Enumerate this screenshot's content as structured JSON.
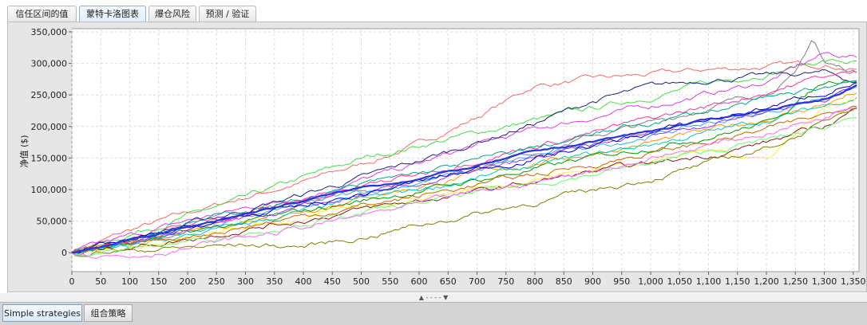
{
  "tabs": [
    {
      "label": "信任区间的值"
    },
    {
      "label": "蒙特卡洛图表"
    },
    {
      "label": "爆仓风险"
    },
    {
      "label": "预测 / 验证"
    }
  ],
  "active_tab": 1,
  "splitter": {
    "glyphs": "▲ - - - - ▼"
  },
  "bottom_tabs": [
    {
      "label": "Simple strategies"
    },
    {
      "label": "组合策略"
    }
  ],
  "active_bottom_tab": 0,
  "chart_data": {
    "type": "line",
    "ylabel": "净值 ($)",
    "xlabel": "",
    "xlim": [
      0,
      1360
    ],
    "ylim": [
      -30000,
      355000
    ],
    "xticks": [
      0,
      50,
      100,
      150,
      200,
      250,
      300,
      350,
      400,
      450,
      500,
      550,
      600,
      650,
      700,
      750,
      800,
      850,
      900,
      950,
      1000,
      1050,
      1100,
      1150,
      1200,
      1250,
      1300,
      1350
    ],
    "xtick_labels": [
      "0",
      "50",
      "100",
      "150",
      "200",
      "250",
      "300",
      "350",
      "400",
      "450",
      "500",
      "550",
      "600",
      "650",
      "700",
      "750",
      "800",
      "850",
      "900",
      "950",
      "1,000",
      "1,050",
      "1,100",
      "1,150",
      "1,200",
      "1,250",
      "1,300",
      "1,350"
    ],
    "yticks": [
      0,
      50000,
      100000,
      150000,
      200000,
      250000,
      300000,
      350000
    ],
    "ytick_labels": [
      "0",
      "50,000",
      "100,000",
      "150,000",
      "200,000",
      "250,000",
      "300,000",
      "350,000"
    ],
    "grid": true,
    "series": [
      {
        "color": "#2a35d8",
        "emphasis": true,
        "x": [
          0,
          100,
          200,
          300,
          400,
          500,
          600,
          700,
          800,
          900,
          1000,
          1100,
          1200,
          1300,
          1360
        ],
        "y": [
          0,
          20000,
          40000,
          62000,
          82000,
          103000,
          118000,
          137000,
          160000,
          176000,
          193000,
          210000,
          227000,
          243000,
          267000
        ]
      },
      {
        "color": "#ff6666",
        "x": [
          0,
          100,
          200,
          300,
          400,
          500,
          600,
          700,
          800,
          900,
          1000,
          1100,
          1200,
          1300,
          1360
        ],
        "y": [
          0,
          35000,
          62000,
          88000,
          112000,
          140000,
          172000,
          215000,
          265000,
          275000,
          282000,
          290000,
          295000,
          300000,
          290000
        ]
      },
      {
        "color": "#44dd44",
        "x": [
          0,
          100,
          200,
          300,
          400,
          500,
          600,
          700,
          800,
          900,
          1000,
          1100,
          1200,
          1300,
          1360
        ],
        "y": [
          0,
          30000,
          58000,
          85000,
          118000,
          148000,
          170000,
          190000,
          210000,
          228000,
          248000,
          268000,
          285000,
          305000,
          300000
        ]
      },
      {
        "color": "#e040e0",
        "x": [
          0,
          100,
          200,
          300,
          400,
          500,
          600,
          700,
          800,
          900,
          1000,
          1100,
          1200,
          1300,
          1360
        ],
        "y": [
          0,
          25000,
          50000,
          70000,
          90000,
          115000,
          140000,
          170000,
          195000,
          215000,
          232000,
          252000,
          270000,
          315000,
          310000
        ]
      },
      {
        "color": "#808080",
        "x": [
          0,
          100,
          200,
          300,
          400,
          500,
          600,
          700,
          800,
          900,
          1000,
          1100,
          1200,
          1250,
          1280,
          1300,
          1360
        ],
        "y": [
          0,
          18000,
          38000,
          58000,
          78000,
          98000,
          118000,
          140000,
          160000,
          185000,
          205000,
          230000,
          255000,
          280000,
          340000,
          300000,
          285000
        ]
      },
      {
        "color": "#1a237e",
        "x": [
          0,
          100,
          200,
          300,
          400,
          500,
          600,
          700,
          800,
          900,
          1000,
          1100,
          1200,
          1300,
          1360
        ],
        "y": [
          0,
          22000,
          45000,
          68000,
          92000,
          118000,
          145000,
          175000,
          205000,
          240000,
          262000,
          275000,
          280000,
          285000,
          270000
        ]
      },
      {
        "color": "#33aaff",
        "x": [
          0,
          100,
          200,
          300,
          400,
          500,
          600,
          700,
          800,
          900,
          1000,
          1100,
          1200,
          1300,
          1360
        ],
        "y": [
          0,
          15000,
          33000,
          55000,
          75000,
          95000,
          112000,
          130000,
          152000,
          168000,
          186000,
          205000,
          222000,
          248000,
          262000
        ]
      },
      {
        "color": "#ff9900",
        "x": [
          0,
          100,
          200,
          300,
          400,
          500,
          600,
          700,
          800,
          900,
          1000,
          1100,
          1200,
          1300,
          1360
        ],
        "y": [
          0,
          12000,
          30000,
          50000,
          68000,
          88000,
          105000,
          125000,
          142000,
          158000,
          175000,
          192000,
          212000,
          235000,
          255000
        ]
      },
      {
        "color": "#00c8c8",
        "x": [
          0,
          100,
          200,
          300,
          400,
          500,
          600,
          700,
          800,
          900,
          1000,
          1100,
          1200,
          1300,
          1360
        ],
        "y": [
          0,
          10000,
          26000,
          45000,
          65000,
          84000,
          100000,
          118000,
          138000,
          155000,
          172000,
          190000,
          210000,
          232000,
          250000
        ]
      },
      {
        "color": "#009900",
        "x": [
          0,
          100,
          200,
          300,
          400,
          500,
          600,
          700,
          800,
          900,
          1000,
          1100,
          1200,
          1300,
          1360
        ],
        "y": [
          0,
          14000,
          30000,
          48000,
          65000,
          82000,
          98000,
          115000,
          132000,
          150000,
          168000,
          185000,
          205000,
          270000,
          280000
        ]
      },
      {
        "color": "#ffee33",
        "x": [
          0,
          100,
          200,
          300,
          400,
          500,
          600,
          700,
          800,
          900,
          1000,
          1100,
          1200,
          1300,
          1360
        ],
        "y": [
          0,
          8000,
          20000,
          38000,
          55000,
          72000,
          88000,
          102000,
          118000,
          132000,
          148000,
          162000,
          150000,
          230000,
          250000
        ]
      },
      {
        "color": "#9b30ff",
        "x": [
          0,
          100,
          200,
          300,
          400,
          500,
          600,
          700,
          800,
          900,
          1000,
          1100,
          1200,
          1300,
          1360
        ],
        "y": [
          0,
          16000,
          35000,
          52000,
          70000,
          90000,
          108000,
          128000,
          148000,
          168000,
          188000,
          205000,
          225000,
          245000,
          265000
        ]
      },
      {
        "color": "#8b1a1a",
        "x": [
          0,
          100,
          200,
          300,
          400,
          500,
          600,
          700,
          800,
          900,
          1000,
          1100,
          1200,
          1300,
          1360
        ],
        "y": [
          0,
          10000,
          22000,
          38000,
          52000,
          68000,
          82000,
          96000,
          112000,
          128000,
          140000,
          155000,
          175000,
          200000,
          230000
        ]
      },
      {
        "color": "#808000",
        "x": [
          0,
          100,
          200,
          300,
          400,
          500,
          600,
          700,
          800,
          900,
          1000,
          1100,
          1200,
          1300,
          1360
        ],
        "y": [
          0,
          4000,
          8000,
          12000,
          10000,
          24000,
          44000,
          62000,
          80000,
          98000,
          118000,
          140000,
          165000,
          205000,
          240000
        ]
      },
      {
        "color": "#ff3399",
        "x": [
          0,
          100,
          200,
          300,
          400,
          500,
          600,
          700,
          800,
          900,
          1000,
          1100,
          1200,
          1300,
          1360
        ],
        "y": [
          0,
          20000,
          42000,
          62000,
          82000,
          104000,
          125000,
          148000,
          170000,
          190000,
          212000,
          232000,
          255000,
          280000,
          285000
        ]
      },
      {
        "color": "#66ff66",
        "x": [
          0,
          100,
          200,
          300,
          400,
          500,
          600,
          700,
          800,
          900,
          1000,
          1100,
          1200,
          1300,
          1360
        ],
        "y": [
          0,
          6000,
          18000,
          32000,
          48000,
          62000,
          78000,
          94000,
          110000,
          125000,
          142000,
          160000,
          178000,
          198000,
          222000
        ]
      },
      {
        "color": "#0000cc",
        "x": [
          0,
          100,
          200,
          300,
          400,
          500,
          600,
          700,
          800,
          900,
          1000,
          1100,
          1200,
          1300,
          1360
        ],
        "y": [
          0,
          18000,
          38000,
          58000,
          72000,
          92000,
          112000,
          132000,
          150000,
          170000,
          190000,
          210000,
          230000,
          255000,
          272000
        ]
      },
      {
        "color": "#cc6600",
        "x": [
          0,
          100,
          200,
          300,
          400,
          500,
          600,
          700,
          800,
          900,
          1000,
          1100,
          1200,
          1300,
          1360
        ],
        "y": [
          0,
          12000,
          26000,
          42000,
          58000,
          74000,
          90000,
          108000,
          124000,
          140000,
          158000,
          175000,
          195000,
          218000,
          240000
        ]
      },
      {
        "color": "#ff66ff",
        "x": [
          0,
          100,
          200,
          300,
          400,
          500,
          600,
          700,
          800,
          900,
          1000,
          1100,
          1200,
          1300,
          1360
        ],
        "y": [
          0,
          -5000,
          8000,
          24000,
          40000,
          58000,
          76000,
          95000,
          112000,
          130000,
          150000,
          170000,
          190000,
          215000,
          240000
        ]
      },
      {
        "color": "#00aa88",
        "x": [
          0,
          100,
          200,
          300,
          400,
          500,
          600,
          700,
          800,
          900,
          1000,
          1100,
          1200,
          1300,
          1360
        ],
        "y": [
          0,
          24000,
          46000,
          66000,
          86000,
          106000,
          126000,
          146000,
          166000,
          186000,
          206000,
          224000,
          242000,
          262000,
          275000
        ]
      }
    ]
  }
}
